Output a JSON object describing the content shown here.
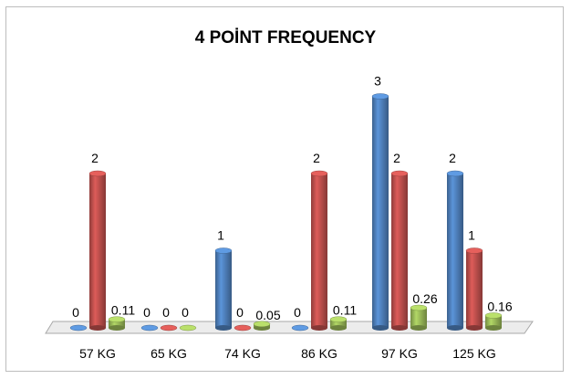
{
  "chart_data": {
    "type": "bar",
    "title": "4 POİNT FREQUENCY",
    "categories": [
      "57 KG",
      "65 KG",
      "74 KG",
      "86 KG",
      "97 KG",
      "125 KG"
    ],
    "series": [
      {
        "values": [
          0,
          0,
          1,
          0,
          3,
          2
        ],
        "labels": [
          "0",
          "0",
          "1",
          "0",
          "3",
          "2"
        ],
        "color": "#4f81bd"
      },
      {
        "values": [
          2,
          0,
          0,
          2,
          2,
          1
        ],
        "labels": [
          "2",
          "0",
          "0",
          "2",
          "2",
          "1"
        ],
        "color": "#c0504d"
      },
      {
        "values": [
          0.11,
          0,
          0.05,
          0.11,
          0.26,
          0.16
        ],
        "labels": [
          "0.11",
          "0",
          "0.05",
          "0.11",
          "0.26",
          "0.16"
        ],
        "color": "#9bbb59"
      }
    ],
    "ylim": [
      0,
      3
    ],
    "legend": "none",
    "grid": false,
    "style": "3d-cylinder"
  }
}
